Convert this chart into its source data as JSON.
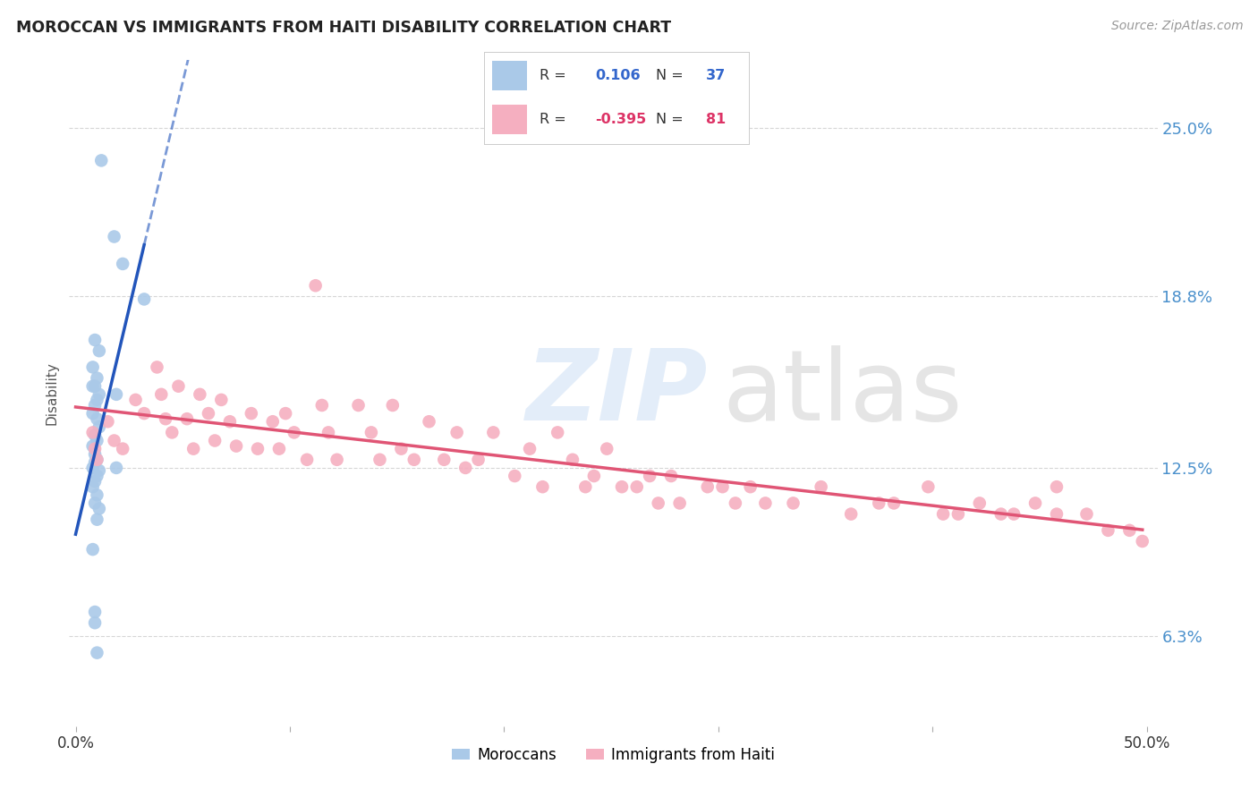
{
  "title": "MOROCCAN VS IMMIGRANTS FROM HAITI DISABILITY CORRELATION CHART",
  "source": "Source: ZipAtlas.com",
  "ylabel": "Disability",
  "ytick_vals": [
    0.063,
    0.125,
    0.188,
    0.25
  ],
  "ytick_labels": [
    "6.3%",
    "12.5%",
    "18.8%",
    "25.0%"
  ],
  "xlim": [
    -0.003,
    0.505
  ],
  "ylim": [
    0.03,
    0.275
  ],
  "r_moroccan": "0.106",
  "n_moroccan": "37",
  "r_haiti": "-0.395",
  "n_haiti": "81",
  "moroccan_color": "#aac9e8",
  "haiti_color": "#f5afc0",
  "moroccan_line_color": "#2255bb",
  "haiti_line_color": "#e05575",
  "background_color": "#ffffff",
  "grid_color": "#cccccc",
  "legend_moroccan_label": "Moroccans",
  "legend_haiti_label": "Immigrants from Haiti",
  "moroccan_x": [
    0.012,
    0.018,
    0.022,
    0.032,
    0.009,
    0.011,
    0.008,
    0.01,
    0.009,
    0.011,
    0.01,
    0.009,
    0.008,
    0.01,
    0.011,
    0.009,
    0.01,
    0.008,
    0.009,
    0.01,
    0.009,
    0.008,
    0.011,
    0.019,
    0.01,
    0.009,
    0.008,
    0.01,
    0.009,
    0.011,
    0.01,
    0.008,
    0.009,
    0.009,
    0.01,
    0.019,
    0.008
  ],
  "moroccan_y": [
    0.238,
    0.21,
    0.2,
    0.187,
    0.172,
    0.168,
    0.162,
    0.158,
    0.155,
    0.152,
    0.15,
    0.148,
    0.145,
    0.143,
    0.14,
    0.137,
    0.135,
    0.133,
    0.13,
    0.128,
    0.127,
    0.125,
    0.124,
    0.125,
    0.122,
    0.12,
    0.118,
    0.115,
    0.112,
    0.11,
    0.106,
    0.095,
    0.072,
    0.068,
    0.057,
    0.152,
    0.155
  ],
  "haiti_x": [
    0.008,
    0.009,
    0.01,
    0.015,
    0.018,
    0.022,
    0.028,
    0.032,
    0.038,
    0.04,
    0.042,
    0.045,
    0.048,
    0.052,
    0.055,
    0.058,
    0.062,
    0.065,
    0.068,
    0.072,
    0.075,
    0.082,
    0.085,
    0.092,
    0.095,
    0.098,
    0.102,
    0.108,
    0.112,
    0.115,
    0.118,
    0.122,
    0.132,
    0.138,
    0.142,
    0.148,
    0.152,
    0.158,
    0.165,
    0.172,
    0.178,
    0.182,
    0.188,
    0.195,
    0.205,
    0.212,
    0.218,
    0.225,
    0.232,
    0.238,
    0.242,
    0.248,
    0.255,
    0.262,
    0.268,
    0.272,
    0.278,
    0.282,
    0.295,
    0.302,
    0.308,
    0.315,
    0.322,
    0.335,
    0.348,
    0.362,
    0.375,
    0.382,
    0.398,
    0.405,
    0.412,
    0.422,
    0.432,
    0.438,
    0.448,
    0.458,
    0.472,
    0.482,
    0.492,
    0.498,
    0.458
  ],
  "haiti_y": [
    0.138,
    0.132,
    0.128,
    0.142,
    0.135,
    0.132,
    0.15,
    0.145,
    0.162,
    0.152,
    0.143,
    0.138,
    0.155,
    0.143,
    0.132,
    0.152,
    0.145,
    0.135,
    0.15,
    0.142,
    0.133,
    0.145,
    0.132,
    0.142,
    0.132,
    0.145,
    0.138,
    0.128,
    0.192,
    0.148,
    0.138,
    0.128,
    0.148,
    0.138,
    0.128,
    0.148,
    0.132,
    0.128,
    0.142,
    0.128,
    0.138,
    0.125,
    0.128,
    0.138,
    0.122,
    0.132,
    0.118,
    0.138,
    0.128,
    0.118,
    0.122,
    0.132,
    0.118,
    0.118,
    0.122,
    0.112,
    0.122,
    0.112,
    0.118,
    0.118,
    0.112,
    0.118,
    0.112,
    0.112,
    0.118,
    0.108,
    0.112,
    0.112,
    0.118,
    0.108,
    0.108,
    0.112,
    0.108,
    0.108,
    0.112,
    0.108,
    0.108,
    0.102,
    0.102,
    0.098,
    0.118
  ]
}
